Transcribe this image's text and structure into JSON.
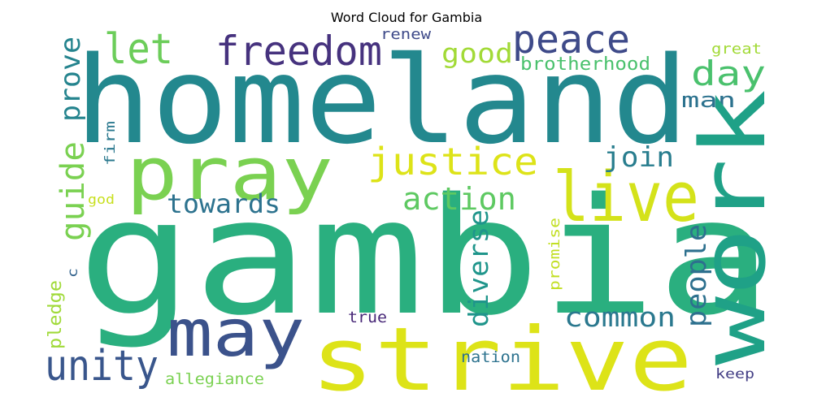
{
  "figure": {
    "title": "Word Cloud for Gambia"
  },
  "words": [
    {
      "text": "gambia",
      "color": "#2aaf7f",
      "rotated": false
    },
    {
      "text": "homeland",
      "color": "#23888e",
      "rotated": false
    },
    {
      "text": "strive",
      "color": "#dde318",
      "rotated": false
    },
    {
      "text": "pray",
      "color": "#7ad151",
      "rotated": false
    },
    {
      "text": "work",
      "color": "#1fa187",
      "rotated": true
    },
    {
      "text": "live",
      "color": "#d4e21a",
      "rotated": false
    },
    {
      "text": "may",
      "color": "#3b528b",
      "rotated": false
    },
    {
      "text": "freedom",
      "color": "#46327e",
      "rotated": false
    },
    {
      "text": "peace",
      "color": "#3e4a89",
      "rotated": false
    },
    {
      "text": "let",
      "color": "#6ccd5a",
      "rotated": false
    },
    {
      "text": "unity",
      "color": "#39568c",
      "rotated": false
    },
    {
      "text": "justice",
      "color": "#dde318",
      "rotated": false
    },
    {
      "text": "action",
      "color": "#5ec962",
      "rotated": false
    },
    {
      "text": "day",
      "color": "#4ac16d",
      "rotated": false
    },
    {
      "text": "good",
      "color": "#a2da37",
      "rotated": false
    },
    {
      "text": "guide",
      "color": "#7ad151",
      "rotated": true
    },
    {
      "text": "prove",
      "color": "#25848e",
      "rotated": true
    },
    {
      "text": "towards",
      "color": "#2c728e",
      "rotated": false
    },
    {
      "text": "join",
      "color": "#287d8e",
      "rotated": false
    },
    {
      "text": "common",
      "color": "#2a788e",
      "rotated": false
    },
    {
      "text": "diverse",
      "color": "#1f958b",
      "rotated": true
    },
    {
      "text": "people",
      "color": "#2d708e",
      "rotated": true
    },
    {
      "text": "man",
      "color": "#2c728e",
      "rotated": false
    },
    {
      "text": "brotherhood",
      "color": "#4ac16d",
      "rotated": false
    },
    {
      "text": "renew",
      "color": "#3e4a89",
      "rotated": false
    },
    {
      "text": "great",
      "color": "#a2da37",
      "rotated": false
    },
    {
      "text": "firm",
      "color": "#2a788e",
      "rotated": true
    },
    {
      "text": "god",
      "color": "#c8e020",
      "rotated": false
    },
    {
      "text": "pledge",
      "color": "#a0da39",
      "rotated": true
    },
    {
      "text": "c",
      "color": "#33638d",
      "rotated": true
    },
    {
      "text": "true",
      "color": "#482878",
      "rotated": false
    },
    {
      "text": "nation",
      "color": "#2c728e",
      "rotated": false
    },
    {
      "text": "allegiance",
      "color": "#7ad151",
      "rotated": false
    },
    {
      "text": "promise",
      "color": "#c2df23",
      "rotated": true
    },
    {
      "text": "keep",
      "color": "#433e85",
      "rotated": false
    }
  ]
}
